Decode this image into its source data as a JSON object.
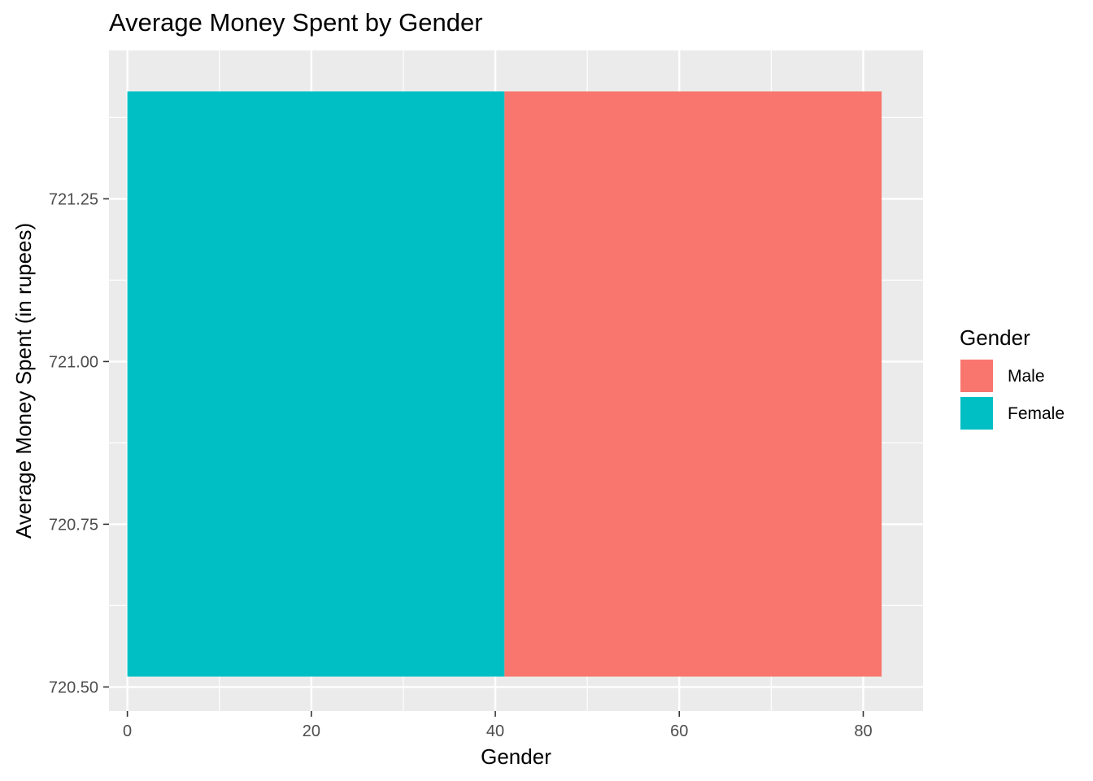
{
  "chart_data": {
    "type": "bar",
    "title": "Average Money Spent by Gender",
    "xlabel": "Gender",
    "ylabel": "Average Money Spent (in rupees)",
    "xlim": [
      -2,
      86.5
    ],
    "ylim": [
      720.463,
      721.478
    ],
    "x_ticks": [
      0,
      20,
      40,
      60,
      80
    ],
    "y_ticks": [
      720.5,
      720.75,
      721.0,
      721.25
    ],
    "y_tick_labels": [
      "720.50",
      "720.75",
      "721.00",
      "721.25"
    ],
    "grid": true,
    "legend": {
      "title": "Gender",
      "position": "right",
      "entries": [
        {
          "label": "Male",
          "color": "#F8766D"
        },
        {
          "label": "Female",
          "color": "#00BFC4"
        }
      ]
    },
    "bars": [
      {
        "category": "Female",
        "x_start": 0,
        "x_end": 41,
        "y_start": 720.516,
        "y_end": 721.415,
        "color": "#00BFC4"
      },
      {
        "category": "Male",
        "x_start": 41,
        "x_end": 82,
        "y_start": 720.516,
        "y_end": 721.415,
        "color": "#F8766D"
      }
    ],
    "panel_background": "#EBEBEB",
    "grid_color": "#FFFFFF"
  }
}
